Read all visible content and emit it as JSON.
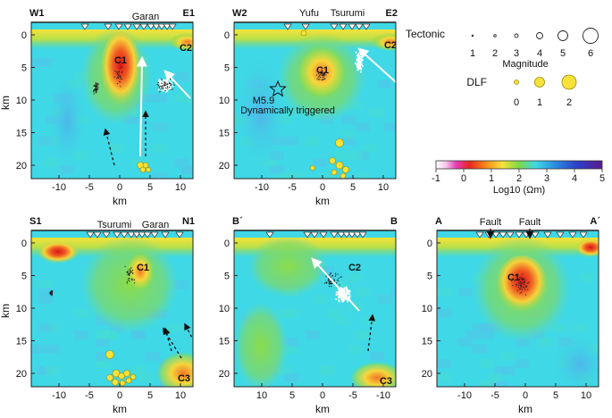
{
  "panels": [
    {
      "id": "w1e1",
      "left_label": "W1",
      "right_label": "E1",
      "x_ticks": [
        "-10",
        "-5",
        "0",
        "5",
        "10"
      ],
      "x_axis_title": "km",
      "y_ticks": [
        "0",
        "5",
        "10",
        "15",
        "20"
      ],
      "y_axis_title": "km",
      "labels": [
        "Garan",
        "C1",
        "C2"
      ]
    },
    {
      "id": "w2e2",
      "left_label": "W2",
      "right_label": "E2",
      "x_ticks": [
        "-10",
        "-5",
        "0",
        "5",
        "10"
      ],
      "x_axis_title": "km",
      "y_ticks": [
        "0",
        "5",
        "10",
        "15",
        "20"
      ],
      "labels": [
        "Yufu",
        "Tsurumi",
        "C1",
        "C2",
        "M5.9",
        "Dynamically triggered"
      ]
    },
    {
      "id": "s1n1",
      "left_label": "S1",
      "right_label": "N1",
      "x_ticks": [
        "-10",
        "-5",
        "0",
        "5",
        "10"
      ],
      "x_axis_title": "km",
      "y_ticks": [
        "0",
        "5",
        "10",
        "15",
        "20"
      ],
      "y_axis_title": "km",
      "labels": [
        "Tsurumi",
        "Garan",
        "C1",
        "C3"
      ]
    },
    {
      "id": "bpb",
      "left_label": "B´",
      "right_label": "B",
      "x_ticks": [
        "10",
        "5",
        "0",
        "-5",
        "-10"
      ],
      "x_axis_title": "km",
      "y_ticks": [
        "0",
        "5",
        "10",
        "15",
        "20"
      ],
      "labels": [
        "C2",
        "C3"
      ]
    },
    {
      "id": "aap",
      "left_label": "A",
      "right_label": "A´",
      "x_ticks": [
        "-10",
        "-5",
        "0",
        "5",
        "10"
      ],
      "x_axis_title": "km",
      "y_ticks": [
        "0",
        "5",
        "10",
        "15",
        "20"
      ],
      "labels": [
        "Fault",
        "Fault",
        "C1"
      ]
    }
  ],
  "legend": {
    "tectonic_title": "Tectonic",
    "tectonic_magnitudes": [
      "1",
      "2",
      "3",
      "4",
      "5",
      "6"
    ],
    "magnitude_label": "Magnitude",
    "dlf_title": "DLF",
    "dlf_magnitudes": [
      "0",
      "1",
      "2"
    ]
  },
  "colorbar": {
    "ticks": [
      "-1",
      "0",
      "1",
      "2",
      "3",
      "4",
      "5"
    ],
    "label": "Log10 (Ωm)"
  },
  "colors": {
    "background_resistivity": "#3fd8e6",
    "conductor": "#e8261e",
    "dlf_fill": "#f7e23a",
    "seismicity": "#222222"
  }
}
